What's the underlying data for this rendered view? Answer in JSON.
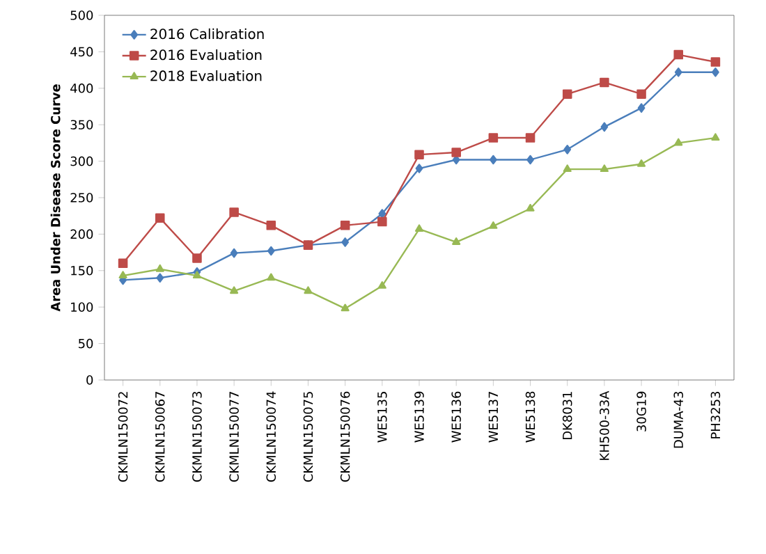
{
  "chart_data": {
    "type": "line",
    "ylabel": "Area Under Disease Score Curve",
    "categories": [
      "CKMLN150072",
      "CKMLN150067",
      "CKMLN150073",
      "CKMLN150077",
      "CKMLN150074",
      "CKMLN150075",
      "CKMLN150076",
      "WE5135",
      "WE5139",
      "WE5136",
      "WE5137",
      "WE5138",
      "DK8031",
      "KH500-33A",
      "30G19",
      "DUMA-43",
      "PH3253"
    ],
    "series": [
      {
        "name": "2016 Calibration",
        "color": "#4a7ebb",
        "marker": "diamond",
        "values": [
          137,
          140,
          148,
          174,
          177,
          185,
          189,
          228,
          290,
          302,
          302,
          302,
          316,
          347,
          373,
          422,
          422
        ]
      },
      {
        "name": "2016 Evaluation",
        "color": "#be4b48",
        "marker": "square",
        "values": [
          160,
          222,
          167,
          230,
          212,
          185,
          212,
          217,
          309,
          312,
          332,
          332,
          392,
          408,
          392,
          446,
          436
        ]
      },
      {
        "name": "2018 Evaluation",
        "color": "#98b954",
        "marker": "triangle",
        "values": [
          143,
          152,
          143,
          122,
          140,
          122,
          98,
          129,
          207,
          189,
          211,
          235,
          289,
          289,
          296,
          325,
          332
        ]
      }
    ],
    "ylim": [
      0,
      500
    ],
    "yticks": [
      0,
      50,
      100,
      150,
      200,
      250,
      300,
      350,
      400,
      450,
      500
    ],
    "grid": false,
    "legend": "top left"
  }
}
